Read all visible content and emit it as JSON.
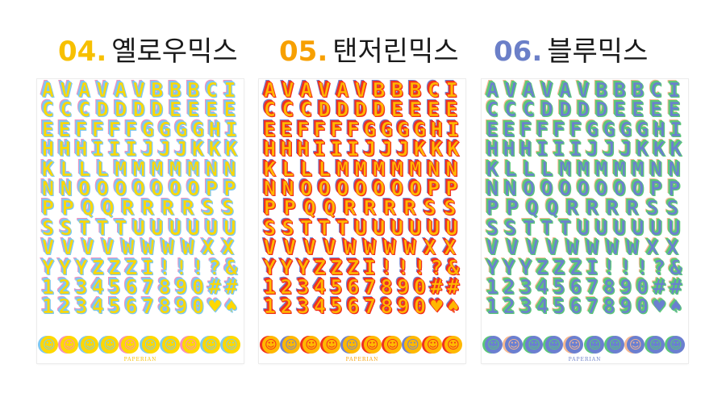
{
  "products": [
    {
      "number": "04.",
      "name": "옐로우믹스",
      "accent": "#f7c000",
      "fill": "#ffd800",
      "outline": "#7ec8f0",
      "shadow": "#f48fc0",
      "smile_bg": [
        "#7ec8f0",
        "#f48fc0"
      ],
      "logo": "PAPERIAN"
    },
    {
      "number": "05.",
      "name": "탠저린믹스",
      "accent": "#f7a000",
      "fill": "#ffb800",
      "outline": "#f03020",
      "shadow": "#7080d0",
      "smile_bg": [
        "#f03020",
        "#7080d0"
      ],
      "logo": "PAPERIAN"
    },
    {
      "number": "06.",
      "name": "블루믹스",
      "accent": "#6b7fc8",
      "fill": "#6b7fd0",
      "outline": "#5cc878",
      "shadow": "#f5b890",
      "smile_bg": [
        "#5cc878",
        "#f5b890"
      ],
      "logo": "PAPERIAN"
    }
  ],
  "sticker_rows": [
    "AVAVAVBBBCI",
    "CCCDDDDEEEE",
    "EEFFFFGGGGHI",
    "HHHIIIJJJKKK",
    "KLLLMMMMMNN",
    "NNOOOOOOOPP",
    "PPQQRRRRSS",
    "SSTTTUUUUUU",
    "VVVVWWWWXX",
    "YYYZZZI!!!?&",
    "1234567890##",
    "1234567890♥♠"
  ],
  "smiley_count": 10,
  "smiley_icon": "smiley-face-icon"
}
